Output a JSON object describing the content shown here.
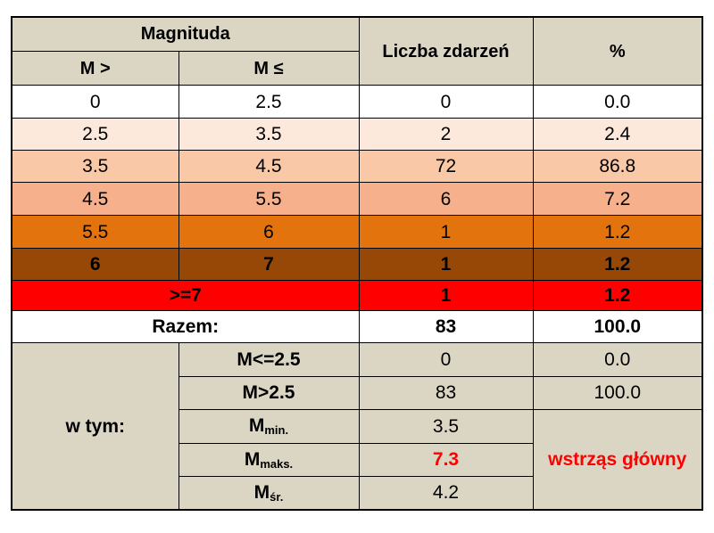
{
  "header": {
    "magnitude": "Magnituda",
    "m_gt": "M >",
    "m_le": "M ≤",
    "count": "Liczba zdarzeń",
    "percent": "%"
  },
  "rows": [
    {
      "m_gt": "0",
      "m_le": "2.5",
      "count": "0",
      "percent": "0.0"
    },
    {
      "m_gt": "2.5",
      "m_le": "3.5",
      "count": "2",
      "percent": "2.4"
    },
    {
      "m_gt": "3.5",
      "m_le": "4.5",
      "count": "72",
      "percent": "86.8"
    },
    {
      "m_gt": "4.5",
      "m_le": "5.5",
      "count": "6",
      "percent": "7.2"
    },
    {
      "m_gt": "5.5",
      "m_le": "6",
      "count": "1",
      "percent": "1.2"
    },
    {
      "m_gt": "6",
      "m_le": "7",
      "count": "1",
      "percent": "1.2"
    }
  ],
  "over7": {
    "label": ">=7",
    "count": "1",
    "percent": "1.2"
  },
  "total": {
    "label": "Razem:",
    "count": "83",
    "percent": "100.0"
  },
  "breakdown": {
    "label": "w tym:",
    "le25": {
      "label": "M<=2.5",
      "count": "0",
      "percent": "0.0"
    },
    "gt25": {
      "label": "M>2.5",
      "count": "83",
      "percent": "100.0"
    },
    "min": {
      "base": "M",
      "sub": "min.",
      "value": "3.5"
    },
    "max": {
      "base": "M",
      "sub": "maks.",
      "value": "7.3"
    },
    "avg": {
      "base": "M",
      "sub": "śr.",
      "value": "4.2"
    },
    "main_shock": "wstrząs główny"
  },
  "colors": {
    "header_bg": "#dbd6c4",
    "row1": "#fde9dc",
    "row2": "#f9c8a7",
    "row3": "#f6b08b",
    "row4": "#e3730d",
    "row5": "#974807",
    "over7": "#ff0000",
    "highlight_text": "#ff0000"
  }
}
